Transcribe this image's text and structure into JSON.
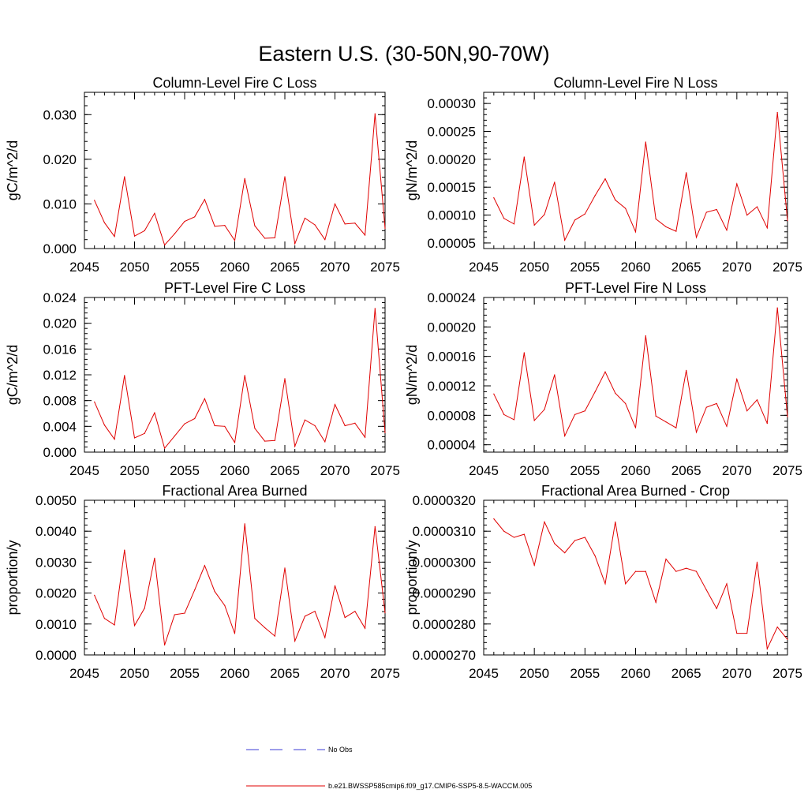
{
  "figure": {
    "title": "Eastern U.S. (30-50N,90-70W)"
  },
  "legend": {
    "placement": "bottom-center",
    "entries": [
      {
        "label": "No Obs",
        "style": "dashed",
        "color": "#3b3bd6"
      },
      {
        "label": "b.e21.BWSSP585cmip6.f09_g17.CMIP6-SSP5-8.5-WACCM.005",
        "style": "solid",
        "color": "#e00000"
      }
    ]
  },
  "chart_data": [
    {
      "type": "line",
      "title": "Column-Level Fire C Loss",
      "ylabel": "gC/m^2/d",
      "xlim": [
        2045,
        2075
      ],
      "xticks": [
        "2045",
        "2050",
        "2055",
        "2060",
        "2065",
        "2070",
        "2075"
      ],
      "ylim": [
        0,
        0.035
      ],
      "yticks": [
        "0.000",
        "0.010",
        "0.020",
        "0.030"
      ],
      "x": [
        2046,
        2047,
        2048,
        2049,
        2050,
        2051,
        2052,
        2053,
        2054,
        2055,
        2056,
        2057,
        2058,
        2059,
        2060,
        2061,
        2062,
        2063,
        2064,
        2065,
        2066,
        2067,
        2068,
        2069,
        2070,
        2071,
        2072,
        2073,
        2074,
        2075
      ],
      "series": [
        {
          "color": "#e00000",
          "values": [
            0.0108,
            0.0058,
            0.0027,
            0.0161,
            0.0028,
            0.004,
            0.0079,
            0.0008,
            0.0033,
            0.0061,
            0.0071,
            0.011,
            0.005,
            0.0052,
            0.0018,
            0.0157,
            0.0051,
            0.0023,
            0.0024,
            0.0161,
            0.0011,
            0.0068,
            0.0053,
            0.002,
            0.01,
            0.0055,
            0.0057,
            0.003,
            0.0302,
            0.0045
          ]
        }
      ]
    },
    {
      "type": "line",
      "title": "Column-Level Fire N Loss",
      "ylabel": "gN/m^2/d",
      "xlim": [
        2045,
        2075
      ],
      "xticks": [
        "2045",
        "2050",
        "2055",
        "2060",
        "2065",
        "2070",
        "2075"
      ],
      "ylim": [
        4e-05,
        0.00032
      ],
      "yticks": [
        "0.00005",
        "0.00010",
        "0.00015",
        "0.00020",
        "0.00025",
        "0.00030"
      ],
      "x": [
        2046,
        2047,
        2048,
        2049,
        2050,
        2051,
        2052,
        2053,
        2054,
        2055,
        2056,
        2057,
        2058,
        2059,
        2060,
        2061,
        2062,
        2063,
        2064,
        2065,
        2066,
        2067,
        2068,
        2069,
        2070,
        2071,
        2072,
        2073,
        2074,
        2075
      ],
      "series": [
        {
          "color": "#e00000",
          "values": [
            0.000131,
            9.4e-05,
            8.4e-05,
            0.000204,
            8.2e-05,
            0.000101,
            0.000159,
            5.5e-05,
            9.1e-05,
            0.000102,
            0.000135,
            0.000165,
            0.000127,
            0.000112,
            7e-05,
            0.000231,
            9.3e-05,
            7.9e-05,
            7.1e-05,
            0.000176,
            6e-05,
            0.000105,
            0.00011,
            7.3e-05,
            0.000156,
            0.0001,
            0.000115,
            7.7e-05,
            0.000284,
            9e-05
          ]
        }
      ]
    },
    {
      "type": "line",
      "title": "PFT-Level Fire C Loss",
      "ylabel": "gC/m^2/d",
      "xlim": [
        2045,
        2075
      ],
      "xticks": [
        "2045",
        "2050",
        "2055",
        "2060",
        "2065",
        "2070",
        "2075"
      ],
      "ylim": [
        0,
        0.024
      ],
      "yticks": [
        "0.000",
        "0.004",
        "0.008",
        "0.012",
        "0.016",
        "0.020",
        "0.024"
      ],
      "x": [
        2046,
        2047,
        2048,
        2049,
        2050,
        2051,
        2052,
        2053,
        2054,
        2055,
        2056,
        2057,
        2058,
        2059,
        2060,
        2061,
        2062,
        2063,
        2064,
        2065,
        2066,
        2067,
        2068,
        2069,
        2070,
        2071,
        2072,
        2073,
        2074,
        2075
      ],
      "series": [
        {
          "color": "#e00000",
          "values": [
            0.0078,
            0.0042,
            0.002,
            0.0119,
            0.0022,
            0.0029,
            0.0061,
            0.0006,
            0.0025,
            0.0044,
            0.0052,
            0.0083,
            0.0041,
            0.004,
            0.0015,
            0.0119,
            0.0037,
            0.0017,
            0.0018,
            0.0114,
            0.0009,
            0.005,
            0.0041,
            0.0016,
            0.0074,
            0.0041,
            0.0045,
            0.0023,
            0.0223,
            0.003
          ]
        }
      ]
    },
    {
      "type": "line",
      "title": "PFT-Level Fire N Loss",
      "ylabel": "gN/m^2/d",
      "xlim": [
        2045,
        2075
      ],
      "xticks": [
        "2045",
        "2050",
        "2055",
        "2060",
        "2065",
        "2070",
        "2075"
      ],
      "ylim": [
        3e-05,
        0.00024
      ],
      "yticks": [
        "0.00004",
        "0.00008",
        "0.00012",
        "0.00016",
        "0.00020",
        "0.00024"
      ],
      "x": [
        2046,
        2047,
        2048,
        2049,
        2050,
        2051,
        2052,
        2053,
        2054,
        2055,
        2056,
        2057,
        2058,
        2059,
        2060,
        2061,
        2062,
        2063,
        2064,
        2065,
        2066,
        2067,
        2068,
        2069,
        2070,
        2071,
        2072,
        2073,
        2074,
        2075
      ],
      "series": [
        {
          "color": "#e00000",
          "values": [
            0.000109,
            8.1e-05,
            7.4e-05,
            0.000165,
            7.3e-05,
            8.8e-05,
            0.000135,
            5.2e-05,
            8.1e-05,
            8.6e-05,
            0.000112,
            0.000139,
            0.00011,
            9.6e-05,
            6.3e-05,
            0.000188,
            7.9e-05,
            7.1e-05,
            6.3e-05,
            0.000141,
            5.7e-05,
            9.1e-05,
            9.6e-05,
            6.5e-05,
            0.000129,
            8.6e-05,
            0.000101,
            6.9e-05,
            0.000226,
            7.8e-05
          ]
        }
      ]
    },
    {
      "type": "line",
      "title": "Fractional Area Burned",
      "ylabel": "proportion/y",
      "xlim": [
        2045,
        2075
      ],
      "xticks": [
        "2045",
        "2050",
        "2055",
        "2060",
        "2065",
        "2070",
        "2075"
      ],
      "ylim": [
        0,
        0.005
      ],
      "yticks": [
        "0.0000",
        "0.0010",
        "0.0020",
        "0.0030",
        "0.0040",
        "0.0050"
      ],
      "x": [
        2046,
        2047,
        2048,
        2049,
        2050,
        2051,
        2052,
        2053,
        2054,
        2055,
        2056,
        2057,
        2058,
        2059,
        2060,
        2061,
        2062,
        2063,
        2064,
        2065,
        2066,
        2067,
        2068,
        2069,
        2070,
        2071,
        2072,
        2073,
        2074,
        2075
      ],
      "series": [
        {
          "color": "#e00000",
          "values": [
            0.00193,
            0.00118,
            0.00097,
            0.00339,
            0.00095,
            0.00151,
            0.00313,
            0.00032,
            0.0013,
            0.00135,
            0.0021,
            0.00289,
            0.00205,
            0.0016,
            0.00069,
            0.00424,
            0.00118,
            0.00088,
            0.00061,
            0.00281,
            0.00045,
            0.00125,
            0.00141,
            0.00056,
            0.00224,
            0.00121,
            0.00141,
            0.00086,
            0.00415,
            0.00136
          ]
        }
      ]
    },
    {
      "type": "line",
      "title": "Fractional Area Burned - Crop",
      "ylabel": "proportion/y",
      "xlim": [
        2045,
        2075
      ],
      "xticks": [
        "2045",
        "2050",
        "2055",
        "2060",
        "2065",
        "2070",
        "2075"
      ],
      "ylim": [
        2.7e-05,
        3.2e-05
      ],
      "yticks": [
        "0.0000270",
        "0.0000280",
        "0.0000290",
        "0.0000300",
        "0.0000310",
        "0.0000320"
      ],
      "x": [
        2046,
        2047,
        2048,
        2049,
        2050,
        2051,
        2052,
        2053,
        2054,
        2055,
        2056,
        2057,
        2058,
        2059,
        2060,
        2061,
        2062,
        2063,
        2064,
        2065,
        2066,
        2067,
        2068,
        2069,
        2070,
        2071,
        2072,
        2073,
        2074,
        2075
      ],
      "series": [
        {
          "color": "#e00000",
          "values": [
            3.14e-05,
            3.1e-05,
            3.08e-05,
            3.09e-05,
            2.99e-05,
            3.13e-05,
            3.06e-05,
            3.03e-05,
            3.07e-05,
            3.08e-05,
            3.02e-05,
            2.93e-05,
            3.13e-05,
            2.93e-05,
            2.97e-05,
            2.97e-05,
            2.87e-05,
            3.01e-05,
            2.97e-05,
            2.98e-05,
            2.97e-05,
            2.91e-05,
            2.85e-05,
            2.93e-05,
            2.77e-05,
            2.77e-05,
            3e-05,
            2.72e-05,
            2.79e-05,
            2.75e-05
          ]
        }
      ]
    }
  ]
}
